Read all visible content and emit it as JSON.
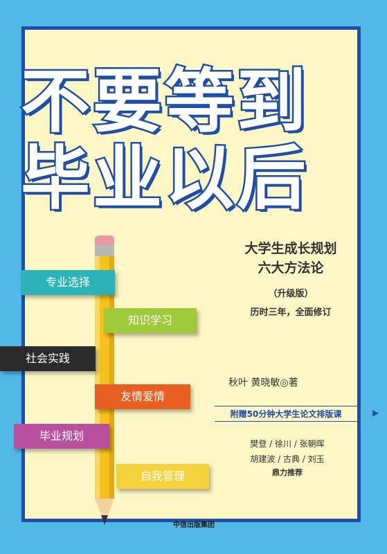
{
  "cover": {
    "title_line1": "不要等到",
    "title_line2": "毕业以后",
    "subtitle_line1": "大学生成长规划",
    "subtitle_line2": "六大方法论",
    "edition": "（升级版）",
    "revision_note": "历时三年，全面修订",
    "authors": "秋叶  黄晓敏◎著",
    "bonus": "附赠50分钟大学生论文排版课",
    "recommenders_line1": "樊登 / 徐川 / 张朝晖",
    "recommenders_line2": "胡建波 / 古典 / 刘玉",
    "recommend_note": "鼎力推荐",
    "publisher": "中信出版集团"
  },
  "pencil_labels": [
    {
      "text": "专业选择",
      "color": "#2bb3b8"
    },
    {
      "text": "知识学习",
      "color": "#9fcb3b"
    },
    {
      "text": "社会实践",
      "color": "#2b2b2b"
    },
    {
      "text": "友情爱情",
      "color": "#e95f22"
    },
    {
      "text": "毕业规划",
      "color": "#b8509d"
    },
    {
      "text": "自我管理",
      "color": "#f6d23c"
    }
  ],
  "colors": {
    "background": "#52b8e8",
    "panel": "#fdf7c6",
    "border": "#1f4ea6",
    "pencil_body": "#f4c21d"
  }
}
